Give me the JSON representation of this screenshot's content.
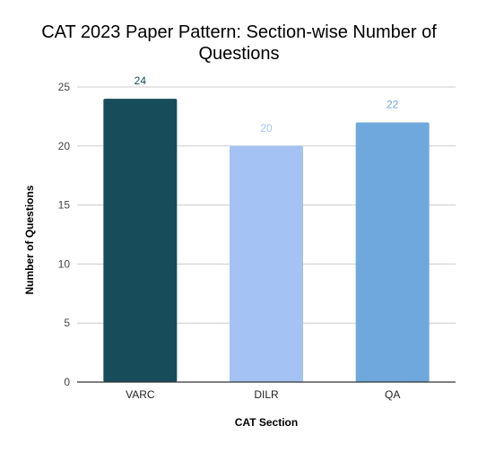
{
  "chart_data": {
    "type": "bar",
    "title_lines": [
      "CAT 2023 Paper Pattern: Section-wise Number of",
      "Questions"
    ],
    "xlabel": "CAT Section",
    "ylabel": "Number of Questions",
    "categories": [
      "VARC",
      "DILR",
      "QA"
    ],
    "values": [
      24,
      20,
      22
    ],
    "data_labels": [
      "24",
      "20",
      "22"
    ],
    "ylim": [
      0,
      25
    ],
    "yticks": [
      0,
      5,
      10,
      15,
      20,
      25
    ],
    "ytick_labels": [
      "0",
      "5",
      "10",
      "15",
      "20",
      "25"
    ],
    "grid": true,
    "legend": "none",
    "bar_colors": [
      "#174c5b",
      "#a4c2f4",
      "#6fa8dc"
    ],
    "label_colors": [
      "#174c5b",
      "#a4c2f4",
      "#6fa8dc"
    ],
    "grid_color": "#cccccc",
    "axis_color": "#333333"
  }
}
